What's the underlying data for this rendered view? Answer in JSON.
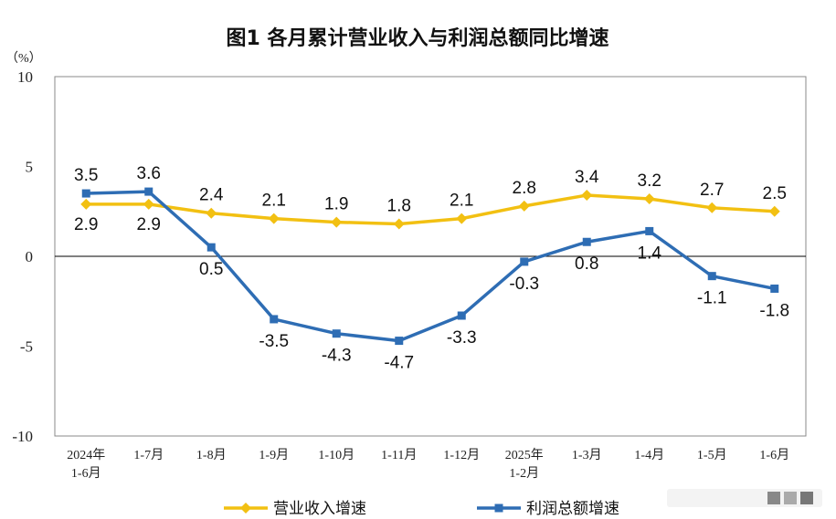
{
  "chart_data": {
    "type": "line",
    "title": "图1  各月累计营业收入与利润总额同比增速",
    "ylabel": "（%）",
    "ylim": [
      -10,
      10
    ],
    "yticks": [
      10,
      5,
      0,
      -5,
      -10
    ],
    "categories": [
      [
        "2024年",
        "1-6月"
      ],
      [
        "1-7月"
      ],
      [
        "1-8月"
      ],
      [
        "1-9月"
      ],
      [
        "1-10月"
      ],
      [
        "1-11月"
      ],
      [
        "1-12月"
      ],
      [
        "2025年",
        "1-2月"
      ],
      [
        "1-3月"
      ],
      [
        "1-4月"
      ],
      [
        "1-5月"
      ],
      [
        "1-6月"
      ]
    ],
    "series": [
      {
        "name": "营业收入增速",
        "color": "#F2C012",
        "marker": "diamond",
        "values": [
          2.9,
          2.9,
          2.4,
          2.1,
          1.9,
          1.8,
          2.1,
          2.8,
          3.4,
          3.2,
          2.7,
          2.5
        ],
        "labels": [
          "2.9",
          "2.9",
          "2.4",
          "2.1",
          "1.9",
          "1.8",
          "2.1",
          "2.8",
          "3.4",
          "3.2",
          "2.7",
          "2.5"
        ]
      },
      {
        "name": "利润总额增速",
        "color": "#2E6DB4",
        "marker": "square",
        "values": [
          3.5,
          3.6,
          0.5,
          -3.5,
          -4.3,
          -4.7,
          -3.3,
          -0.3,
          0.8,
          1.4,
          -1.1,
          -1.8
        ],
        "labels": [
          "3.5",
          "3.6",
          "0.5",
          "-3.5",
          "-4.3",
          "-4.7",
          "-3.3",
          "-0.3",
          "0.8",
          "1.4",
          "-1.1",
          "-1.8"
        ]
      }
    ],
    "grid": false,
    "legend": "bottom"
  }
}
